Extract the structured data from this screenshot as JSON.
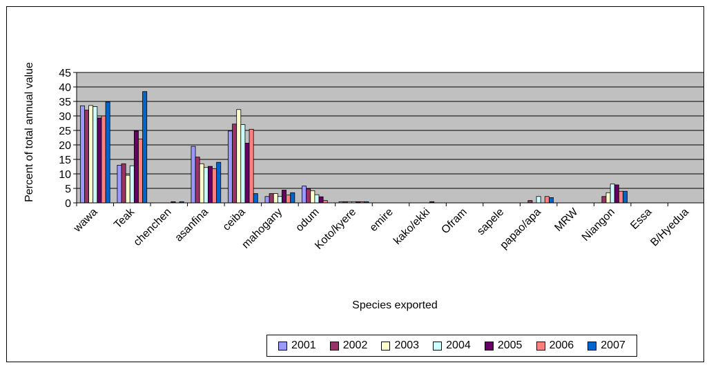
{
  "chart_data": {
    "type": "bar",
    "title": "",
    "xlabel": "Species exported",
    "ylabel": "Percent of total annual value",
    "ylim": [
      0,
      45
    ],
    "yticks": [
      0,
      5,
      10,
      15,
      20,
      25,
      30,
      35,
      40,
      45
    ],
    "grid": true,
    "plot_background": "#C0C0C0",
    "legend_position": "bottom",
    "categories": [
      "wawa",
      "Teak",
      "chenchen",
      "asanfina",
      "ceiba",
      "mahogany",
      "odum",
      "Koto/kyere",
      "emire",
      "kako/ekki",
      "Ofram",
      "sapele",
      "papao/apa",
      "MRW",
      "Niangon",
      "Essa",
      "B/Hyedua"
    ],
    "series": [
      {
        "name": "2001",
        "color": "#9999FF",
        "values": [
          33.5,
          13,
          0,
          19.5,
          24.8,
          2.2,
          5.8,
          0.4,
          0,
          0,
          0,
          0,
          0,
          0,
          0,
          0,
          0
        ]
      },
      {
        "name": "2002",
        "color": "#993366",
        "values": [
          32,
          13.5,
          0,
          15.8,
          27.2,
          3.2,
          4.8,
          0.4,
          0,
          0,
          0,
          0,
          0.8,
          0,
          2.2,
          0,
          0
        ]
      },
      {
        "name": "2003",
        "color": "#FFFFCC",
        "values": [
          33.6,
          9.5,
          0,
          13.5,
          32.2,
          3.2,
          4.2,
          0.4,
          0,
          0,
          0,
          0,
          0,
          0,
          3.5,
          0,
          0
        ]
      },
      {
        "name": "2004",
        "color": "#CCFFFF",
        "values": [
          33.2,
          12.8,
          0,
          12.2,
          27,
          2.2,
          2.8,
          0.4,
          0,
          0,
          0,
          0,
          2.2,
          0,
          6.5,
          0,
          0
        ]
      },
      {
        "name": "2005",
        "color": "#660066",
        "values": [
          29.3,
          24.8,
          0.4,
          12.6,
          20.6,
          4.4,
          2.1,
          0.4,
          0,
          0.4,
          0,
          0,
          0,
          0,
          6.2,
          0,
          0
        ]
      },
      {
        "name": "2006",
        "color": "#FF8080",
        "values": [
          30,
          22,
          0,
          11.8,
          25.4,
          2.7,
          0.8,
          0.4,
          0,
          0,
          0,
          0,
          2.2,
          0,
          4,
          0,
          0
        ]
      },
      {
        "name": "2007",
        "color": "#0066CC",
        "values": [
          34.8,
          38.4,
          0.4,
          14,
          3.2,
          3.5,
          0,
          0.4,
          0,
          0,
          0,
          0,
          1.8,
          0,
          4,
          0,
          0
        ]
      }
    ]
  }
}
